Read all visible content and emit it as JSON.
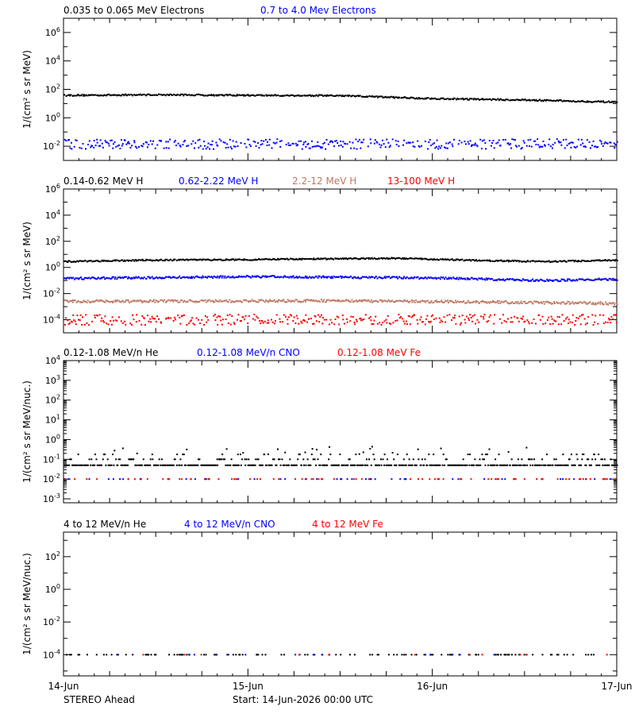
{
  "colors": {
    "black": "#000000",
    "blue": "#0000ff",
    "tan": "#c07860",
    "red": "#ff0000",
    "axis": "#000000"
  },
  "footer": {
    "spacecraft": "STEREO Ahead",
    "start": "Start: 14-Jun-2026 00:00 UTC"
  },
  "chart_data": [
    {
      "type": "scatter",
      "panel": "electrons",
      "ylabel": "1/(cm² s sr MeV)",
      "yscale": "log",
      "ylim_exp": [
        -3,
        7
      ],
      "ytick_exponents": [
        -2,
        0,
        2,
        4,
        6
      ],
      "x": [
        "14-Jun",
        "15-Jun",
        "16-Jun",
        "17-Jun"
      ],
      "xlim_days": [
        0,
        3
      ],
      "grid": false,
      "series": [
        {
          "name": "0.035 to 0.065 MeV Electrons",
          "color": "black",
          "profile": [
            [
              0,
              1.58
            ],
            [
              0.5,
              1.62
            ],
            [
              1.0,
              1.58
            ],
            [
              1.5,
              1.55
            ],
            [
              2.0,
              1.35
            ],
            [
              2.5,
              1.25
            ],
            [
              3.0,
              1.1
            ]
          ],
          "style": "dense",
          "jitter": 0.05
        },
        {
          "name": "0.7 to 4.0 Mev Electrons",
          "color": "blue",
          "profile": [
            [
              0,
              -1.85
            ],
            [
              3.0,
              -1.85
            ]
          ],
          "style": "scatter",
          "jitter": 0.35
        }
      ]
    },
    {
      "type": "scatter",
      "panel": "protons",
      "ylabel": "1/(cm² s sr MeV)",
      "yscale": "log",
      "ylim_exp": [
        -5,
        6
      ],
      "ytick_exponents": [
        -4,
        -2,
        0,
        2,
        4,
        6
      ],
      "x": [
        "14-Jun",
        "15-Jun",
        "16-Jun",
        "17-Jun"
      ],
      "xlim_days": [
        0,
        3
      ],
      "grid": false,
      "series": [
        {
          "name": "0.14-0.62 MeV H",
          "color": "black",
          "profile": [
            [
              0,
              0.45
            ],
            [
              0.4,
              0.55
            ],
            [
              1.0,
              0.6
            ],
            [
              1.8,
              0.7
            ],
            [
              2.2,
              0.55
            ],
            [
              2.6,
              0.45
            ],
            [
              3.0,
              0.55
            ]
          ],
          "style": "dense",
          "jitter": 0.05
        },
        {
          "name": "0.62-2.22 MeV H",
          "color": "blue",
          "profile": [
            [
              0,
              -0.85
            ],
            [
              1.0,
              -0.7
            ],
            [
              2.0,
              -0.8
            ],
            [
              2.6,
              -1.0
            ],
            [
              3.0,
              -0.9
            ]
          ],
          "style": "dense",
          "jitter": 0.08
        },
        {
          "name": "2.2-12 MeV H",
          "color": "tan",
          "profile": [
            [
              0,
              -2.6
            ],
            [
              1.5,
              -2.55
            ],
            [
              3.0,
              -2.75
            ]
          ],
          "style": "dense",
          "jitter": 0.1
        },
        {
          "name": "13-100 MeV H",
          "color": "red",
          "profile": [
            [
              0,
              -4.0
            ],
            [
              3.0,
              -4.0
            ]
          ],
          "style": "scatter",
          "jitter": 0.4
        }
      ]
    },
    {
      "type": "scatter",
      "panel": "heavy_low",
      "ylabel": "1/(cm² s sr MeV/nuc.)",
      "yscale": "log",
      "ylim_exp": [
        -3.2,
        4
      ],
      "ytick_exponents": [
        -3,
        -2,
        -1,
        0,
        1,
        2,
        3,
        4
      ],
      "x": [
        "14-Jun",
        "15-Jun",
        "16-Jun",
        "17-Jun"
      ],
      "xlim_days": [
        0,
        3
      ],
      "grid": false,
      "series": [
        {
          "name": "0.12-1.08 MeV/n He",
          "color": "black",
          "profile": [
            [
              0,
              -1.3
            ],
            [
              3.0,
              -1.3
            ]
          ],
          "style": "he",
          "levels": [
            -1.3,
            -1.0,
            -0.75
          ]
        },
        {
          "name": "0.12-1.08 MeV/n CNO",
          "color": "blue",
          "profile": [
            [
              0,
              -2.0
            ],
            [
              3.0,
              -2.0
            ]
          ],
          "style": "sparse",
          "fraction": 0.12
        },
        {
          "name": "0.12-1.08 MeV Fe",
          "color": "red",
          "profile": [
            [
              0,
              -2.0
            ],
            [
              3.0,
              -2.0
            ]
          ],
          "style": "sparse",
          "fraction": 0.14
        }
      ]
    },
    {
      "type": "scatter",
      "panel": "heavy_high",
      "ylabel": "1/(cm² s sr MeV/nuc.)",
      "yscale": "log",
      "ylim_exp": [
        -5.3,
        3.5
      ],
      "ytick_exponents": [
        -4,
        -2,
        0,
        2
      ],
      "x": [
        "14-Jun",
        "15-Jun",
        "16-Jun",
        "17-Jun"
      ],
      "xlim_days": [
        0,
        3
      ],
      "grid": false,
      "series": [
        {
          "name": "4 to 12 MeV/n He",
          "color": "black",
          "profile": [
            [
              0,
              -4.0
            ],
            [
              3.0,
              -4.0
            ]
          ],
          "style": "sparse",
          "fraction": 0.22
        },
        {
          "name": "4 to 12 MeV/n CNO",
          "color": "blue",
          "profile": [
            [
              0,
              -4.0
            ],
            [
              3.0,
              -4.0
            ]
          ],
          "style": "sparse",
          "fraction": 0.03
        },
        {
          "name": "4 to 12 MeV Fe",
          "color": "red",
          "profile": [
            [
              0,
              -4.0
            ],
            [
              3.0,
              -4.0
            ]
          ],
          "style": "sparse",
          "fraction": 0.02
        }
      ]
    }
  ]
}
